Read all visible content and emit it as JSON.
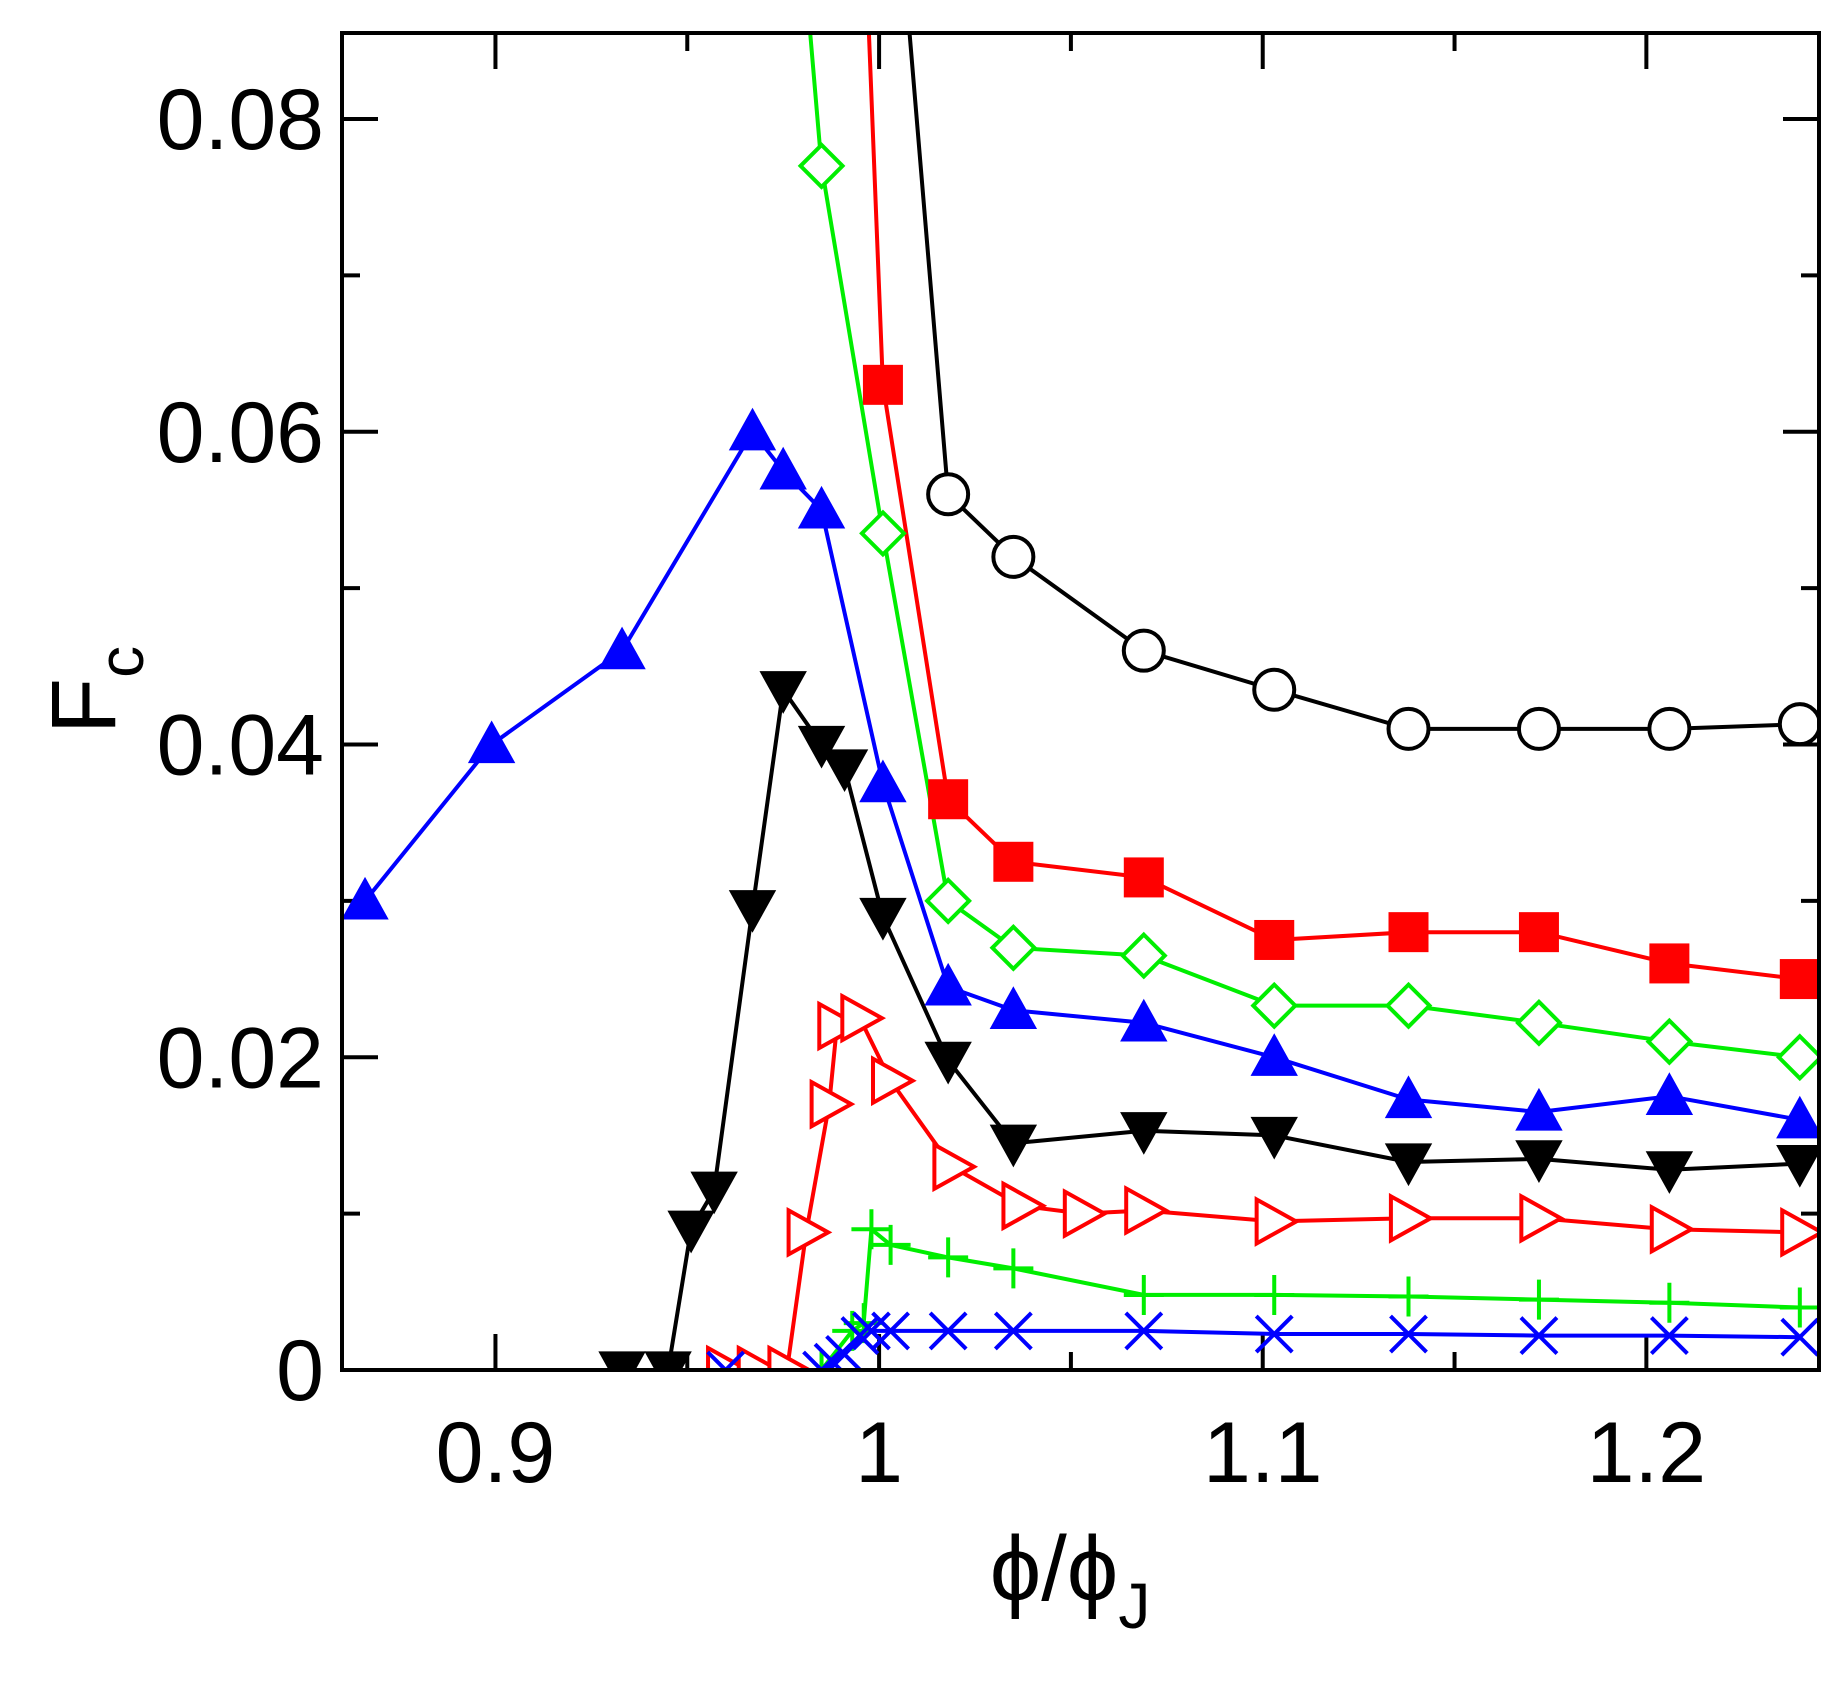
{
  "chart_data": {
    "type": "line",
    "title": "",
    "xlabel": {
      "main": "ϕ/ϕ",
      "subscript": "J"
    },
    "ylabel": {
      "main": "F",
      "subscript": "c"
    },
    "xlim": [
      0.86,
      1.245
    ],
    "ylim": [
      0,
      0.0855
    ],
    "grid": false,
    "legend": "none",
    "x_ticks_major": [
      {
        "value": 0.9,
        "label": "0.9"
      },
      {
        "value": 1.0,
        "label": "1"
      },
      {
        "value": 1.1,
        "label": "1.1"
      },
      {
        "value": 1.2,
        "label": "1.2"
      }
    ],
    "x_ticks_minor": [
      0.95,
      1.05,
      1.15
    ],
    "y_ticks_major": [
      {
        "value": 0,
        "label": "0"
      },
      {
        "value": 0.02,
        "label": "0.02"
      },
      {
        "value": 0.04,
        "label": "0.04"
      },
      {
        "value": 0.06,
        "label": "0.06"
      },
      {
        "value": 0.08,
        "label": "0.08"
      }
    ],
    "y_ticks_minor": [
      0.01,
      0.03,
      0.05,
      0.07
    ],
    "series": [
      {
        "name": "open-circles-black",
        "color": "#000000",
        "marker": "circle-open",
        "x": [
          1.003,
          1.018,
          1.035,
          1.069,
          1.103,
          1.138,
          1.172,
          1.206,
          1.24
        ],
        "y": [
          0.1,
          0.056,
          0.052,
          0.046,
          0.0435,
          0.041,
          0.041,
          0.041,
          0.0413
        ],
        "marked": [
          false,
          true,
          true,
          true,
          true,
          true,
          true,
          true,
          true
        ]
      },
      {
        "name": "filled-squares-red",
        "color": "#ff0000",
        "marker": "square-filled",
        "x": [
          0.995,
          1.001,
          1.018,
          1.035,
          1.069,
          1.103,
          1.138,
          1.172,
          1.206,
          1.24
        ],
        "y": [
          0.1,
          0.063,
          0.0365,
          0.0325,
          0.0315,
          0.0275,
          0.028,
          0.028,
          0.026,
          0.025
        ],
        "marked": [
          false,
          true,
          true,
          true,
          true,
          true,
          true,
          true,
          true,
          true
        ]
      },
      {
        "name": "open-diamonds-green",
        "color": "#00ee00",
        "marker": "diamond-open",
        "x": [
          0.977,
          0.985,
          1.001,
          1.018,
          1.035,
          1.069,
          1.103,
          1.138,
          1.172,
          1.206,
          1.24
        ],
        "y": [
          0.1,
          0.077,
          0.0535,
          0.03,
          0.027,
          0.0265,
          0.0233,
          0.0233,
          0.0222,
          0.021,
          0.02
        ],
        "marked": [
          false,
          true,
          true,
          true,
          true,
          true,
          true,
          true,
          true,
          true,
          true
        ]
      },
      {
        "name": "filled-up-triangles-blue",
        "color": "#0000ff",
        "marker": "triangle-up-filled",
        "x": [
          0.866,
          0.899,
          0.933,
          0.967,
          0.975,
          0.985,
          1.001,
          1.018,
          1.035,
          1.069,
          1.103,
          1.138,
          1.172,
          1.206,
          1.24
        ],
        "y": [
          0.03,
          0.04,
          0.046,
          0.06,
          0.0575,
          0.055,
          0.0375,
          0.0245,
          0.023,
          0.0222,
          0.02,
          0.0173,
          0.0165,
          0.0175,
          0.016
        ],
        "marked": [
          true,
          true,
          true,
          true,
          true,
          true,
          true,
          true,
          true,
          true,
          true,
          true,
          true,
          true,
          true
        ]
      },
      {
        "name": "filled-down-triangles-black",
        "color": "#000000",
        "marker": "triangle-down-filled",
        "x": [
          0.933,
          0.945,
          0.951,
          0.957,
          0.967,
          0.975,
          0.985,
          0.991,
          1.001,
          1.018,
          1.035,
          1.069,
          1.103,
          1.138,
          1.172,
          1.206,
          1.24
        ],
        "y": [
          0,
          0,
          0.009,
          0.0115,
          0.0295,
          0.0435,
          0.04,
          0.0385,
          0.029,
          0.0198,
          0.0145,
          0.0153,
          0.015,
          0.0133,
          0.0135,
          0.0128,
          0.0132
        ],
        "marked": [
          true,
          true,
          true,
          true,
          true,
          true,
          true,
          true,
          true,
          true,
          true,
          true,
          true,
          true,
          true,
          true,
          true
        ]
      },
      {
        "name": "open-right-triangles-red",
        "color": "#ff0000",
        "marker": "triangle-right-open",
        "x": [
          0.96,
          0.968,
          0.976,
          0.981,
          0.987,
          0.989,
          0.995,
          1.003,
          1.019,
          1.037,
          1.053,
          1.069,
          1.103,
          1.138,
          1.172,
          1.206,
          1.24
        ],
        "y": [
          0,
          0,
          0,
          0.0088,
          0.017,
          0.022,
          0.0225,
          0.0185,
          0.013,
          0.0105,
          0.01,
          0.0102,
          0.0095,
          0.0097,
          0.0097,
          0.009,
          0.0088
        ],
        "marked": [
          true,
          true,
          true,
          true,
          true,
          true,
          true,
          true,
          true,
          true,
          true,
          true,
          true,
          true,
          true,
          true,
          true
        ]
      },
      {
        "name": "plus-green",
        "color": "#00ee00",
        "marker": "plus",
        "x": [
          0.985,
          0.993,
          0.996,
          0.998,
          1.003,
          1.018,
          1.035,
          1.069,
          1.103,
          1.138,
          1.172,
          1.206,
          1.24
        ],
        "y": [
          0,
          0.0025,
          0.003,
          0.009,
          0.008,
          0.0072,
          0.0065,
          0.0048,
          0.0048,
          0.0047,
          0.0045,
          0.0043,
          0.004
        ],
        "marked": [
          true,
          true,
          true,
          true,
          true,
          true,
          true,
          true,
          true,
          true,
          true,
          true,
          true
        ]
      },
      {
        "name": "cross-blue",
        "color": "#0000ff",
        "marker": "cross",
        "x": [
          0.96,
          0.985,
          0.988,
          0.991,
          0.995,
          0.998,
          1.003,
          1.018,
          1.035,
          1.069,
          1.103,
          1.138,
          1.172,
          1.206,
          1.24
        ],
        "y": [
          0,
          0,
          0.0005,
          0.001,
          0.0022,
          0.0025,
          0.0025,
          0.0025,
          0.0025,
          0.0025,
          0.0023,
          0.0023,
          0.0022,
          0.0022,
          0.0021
        ],
        "marked": [
          true,
          true,
          true,
          true,
          true,
          true,
          true,
          true,
          true,
          true,
          true,
          true,
          true,
          true,
          true
        ]
      }
    ]
  }
}
